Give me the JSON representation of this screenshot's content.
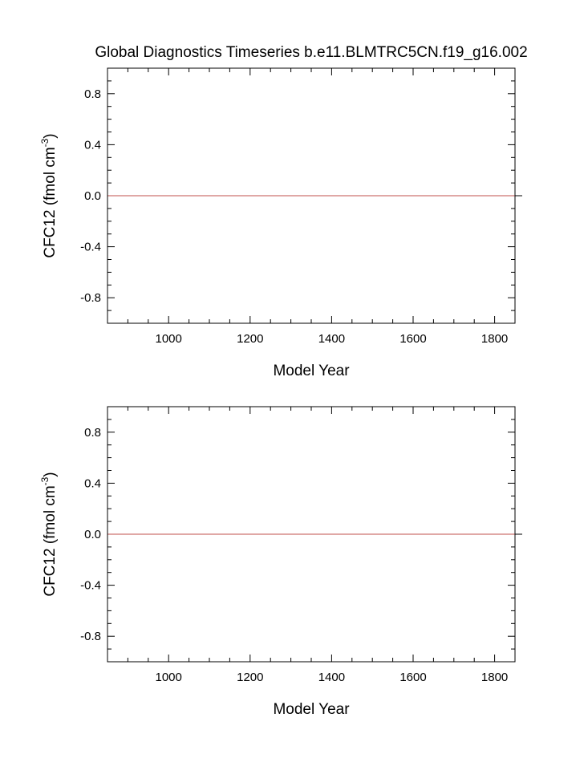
{
  "figure_title": "Global Diagnostics Timeseries b.e11.BLMTRC5CN.f19_g16.002",
  "chart_data": [
    {
      "type": "line",
      "title": "Global Diagnostics Timeseries b.e11.BLMTRC5CN.f19_g16.002",
      "xlabel": "Model Year",
      "ylabel_main": "CFC12 (fmol cm",
      "ylabel_sup": "-3",
      "ylabel_close": ")",
      "xlim": [
        850,
        1850
      ],
      "ylim": [
        -1.0,
        1.0
      ],
      "x_ticks": [
        "1000",
        "1200",
        "1400",
        "1600",
        "1800"
      ],
      "x_tick_values": [
        1000,
        1200,
        1400,
        1600,
        1800
      ],
      "y_ticks": [
        "0.8",
        "0.4",
        "0.0",
        "-0.4",
        "-0.8"
      ],
      "y_tick_values": [
        0.8,
        0.4,
        0.0,
        -0.4,
        -0.8
      ],
      "grid": false,
      "reference_line": {
        "y": 0.0,
        "color": "#000000"
      },
      "series": [
        {
          "color": "#c0504d",
          "x": [
            850,
            1850
          ],
          "y": [
            0.0,
            0.0
          ]
        }
      ]
    },
    {
      "type": "line",
      "title": "",
      "xlabel": "Model Year",
      "ylabel_main": "CFC12 (fmol cm",
      "ylabel_sup": "-3",
      "ylabel_close": ")",
      "xlim": [
        850,
        1850
      ],
      "ylim": [
        -1.0,
        1.0
      ],
      "x_ticks": [
        "1000",
        "1200",
        "1400",
        "1600",
        "1800"
      ],
      "x_tick_values": [
        1000,
        1200,
        1400,
        1600,
        1800
      ],
      "y_ticks": [
        "0.8",
        "0.4",
        "0.0",
        "-0.4",
        "-0.8"
      ],
      "y_tick_values": [
        0.8,
        0.4,
        0.0,
        -0.4,
        -0.8
      ],
      "grid": false,
      "reference_line": {
        "y": 0.0,
        "color": "#000000"
      },
      "series": [
        {
          "color": "#c0504d",
          "x": [
            850,
            1850
          ],
          "y": [
            0.0,
            0.0
          ]
        }
      ]
    }
  ]
}
